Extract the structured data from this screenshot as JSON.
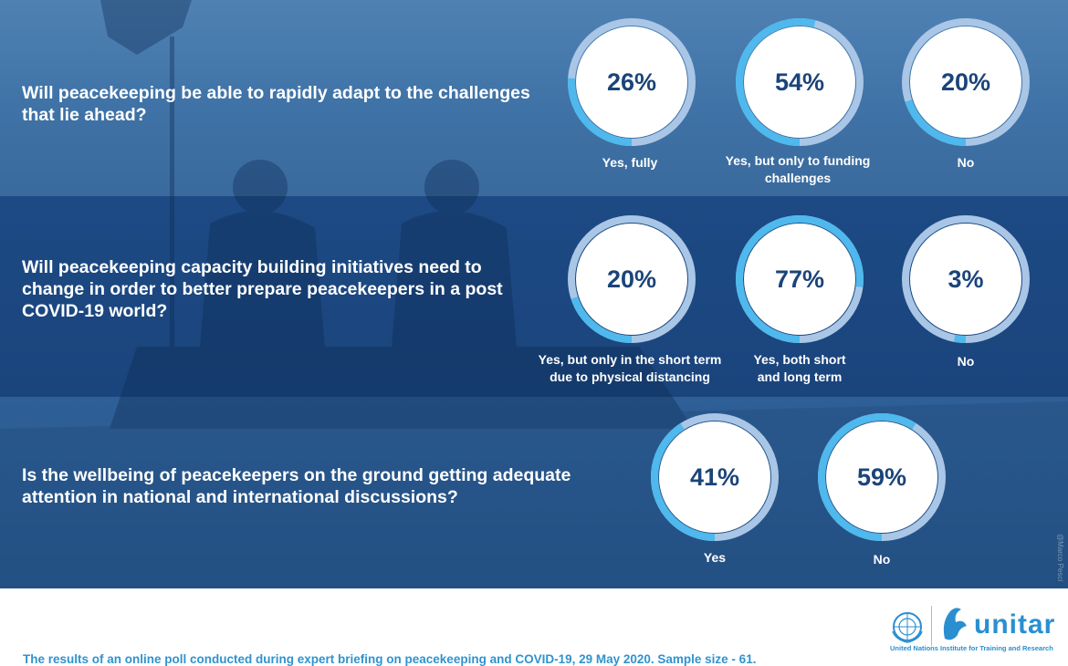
{
  "chart_data": [
    {
      "type": "donut",
      "question": "Will peacekeeping be able to rapidly adapt to the challenges that lie ahead?",
      "items": [
        {
          "label": "Yes, fully",
          "value": 26,
          "display": "26%"
        },
        {
          "label": "Yes, but only to funding challenges",
          "value": 54,
          "display": "54%"
        },
        {
          "label": "No",
          "value": 20,
          "display": "20%"
        }
      ]
    },
    {
      "type": "donut",
      "question": "Will peacekeeping capacity building initiatives need to change in order to better prepare peacekeepers in a post COVID-19 world?",
      "items": [
        {
          "label": "Yes, but only in the short term due to physical distancing",
          "value": 20,
          "display": "20%"
        },
        {
          "label": "Yes, both short and long term",
          "value": 77,
          "display": "77%"
        },
        {
          "label": "No",
          "value": 3,
          "display": "3%"
        }
      ]
    },
    {
      "type": "donut",
      "question": "Is the wellbeing of peacekeepers on the ground getting adequate attention in national and international discussions?",
      "items": [
        {
          "label": "Yes",
          "value": 41,
          "display": "41%"
        },
        {
          "label": "No",
          "value": 59,
          "display": "59%"
        }
      ]
    }
  ],
  "colors": {
    "ring_fill": "#4fb8ec",
    "ring_track": "#a9c6e6",
    "inner": "#ffffff",
    "percent_text": "#1b4479",
    "footnote_text": "#2f93cf"
  },
  "footnote": "The results of an online poll conducted during expert briefing on peacekeeping and COVID-19, 29 May 2020. Sample size - 61.",
  "watermark": "@Marco Pesci",
  "logo": {
    "name": "unitar",
    "subtitle": "United Nations Institute for Training and Research",
    "icons": [
      "un-emblem-icon",
      "unitar-emblem-icon"
    ]
  }
}
